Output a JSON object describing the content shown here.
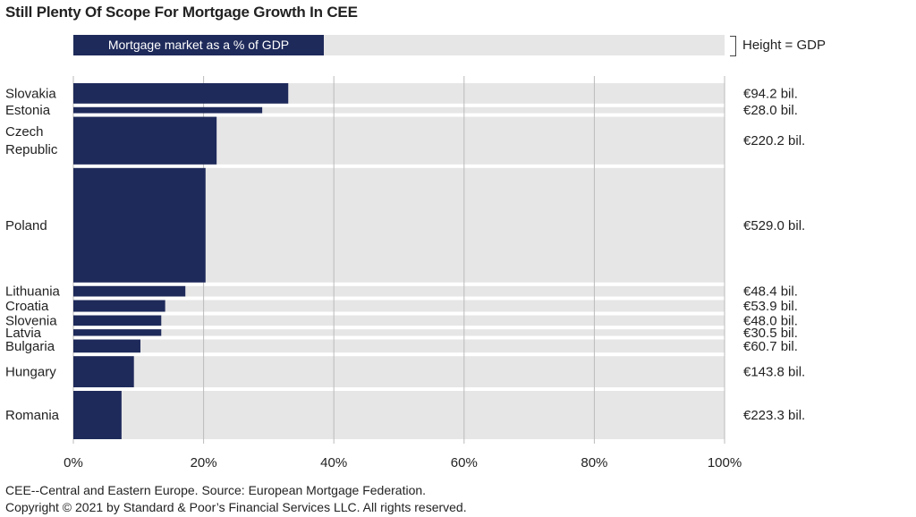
{
  "title": "Still Plenty Of Scope For Mortgage Growth In CEE",
  "legend": {
    "bar_label": "Mortgage market as a % of GDP",
    "height_label": "Height = GDP"
  },
  "colors": {
    "bar": "#1e2a5a",
    "track": "#e6e6e6",
    "grid": "#bbbbbb"
  },
  "chart_data": {
    "type": "bar",
    "orientation": "horizontal",
    "title": "Still Plenty Of Scope For Mortgage Growth In CEE",
    "xlim": [
      0,
      100
    ],
    "x_ticks": [
      "0%",
      "20%",
      "40%",
      "60%",
      "80%",
      "100%"
    ],
    "bar_thickness_encodes": "GDP",
    "categories": [
      {
        "label": [
          "Slovakia"
        ],
        "value": 33,
        "gdp": 94.2,
        "gdp_label": "€94.2 bil."
      },
      {
        "label": [
          "Estonia"
        ],
        "value": 29,
        "gdp": 28.0,
        "gdp_label": "€28.0 bil."
      },
      {
        "label": [
          "Czech",
          "Republic"
        ],
        "value": 22,
        "gdp": 220.2,
        "gdp_label": "€220.2 bil."
      },
      {
        "label": [
          "Poland"
        ],
        "value": 20.3,
        "gdp": 529.0,
        "gdp_label": "€529.0 bil."
      },
      {
        "label": [
          "Lithuania"
        ],
        "value": 17.2,
        "gdp": 48.4,
        "gdp_label": "€48.4 bil."
      },
      {
        "label": [
          "Croatia"
        ],
        "value": 14.1,
        "gdp": 53.9,
        "gdp_label": "€53.9 bil."
      },
      {
        "label": [
          "Slovenia"
        ],
        "value": 13.5,
        "gdp": 48.0,
        "gdp_label": "€48.0 bil."
      },
      {
        "label": [
          "Latvia"
        ],
        "value": 13.5,
        "gdp": 30.5,
        "gdp_label": "€30.5 bil."
      },
      {
        "label": [
          "Bulgaria"
        ],
        "value": 10.3,
        "gdp": 60.7,
        "gdp_label": "€60.7 bil."
      },
      {
        "label": [
          "Hungary"
        ],
        "value": 9.3,
        "gdp": 143.8,
        "gdp_label": "€143.8 bil."
      },
      {
        "label": [
          "Romania"
        ],
        "value": 7.4,
        "gdp": 223.3,
        "gdp_label": "€223.3 bil."
      }
    ]
  },
  "footer": {
    "note": "CEE--Central and Eastern Europe. Source: European Mortgage Federation.",
    "copyright": "Copyright © 2021 by Standard & Poor’s Financial Services LLC. All rights reserved."
  }
}
